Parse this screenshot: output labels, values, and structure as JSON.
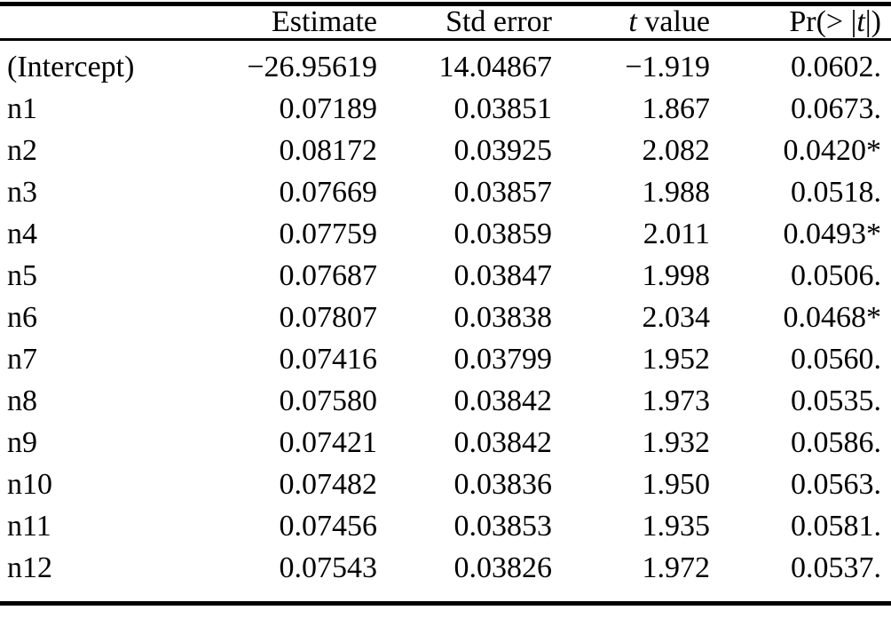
{
  "table": {
    "header": {
      "row_label": "",
      "estimate": "Estimate",
      "std_error": "Std error",
      "t_italic": "t",
      "t_rest": " value",
      "pr_prefix": "Pr(> |",
      "pr_t": "t",
      "pr_suffix": "|)"
    },
    "rows": [
      {
        "label": "(Intercept)",
        "estimate": "−26.95619",
        "std_error": "14.04867",
        "t_value": "−1.919",
        "p_value": "0.0602."
      },
      {
        "label": "n1",
        "estimate": "0.07189",
        "std_error": "0.03851",
        "t_value": "1.867",
        "p_value": "0.0673."
      },
      {
        "label": "n2",
        "estimate": "0.08172",
        "std_error": "0.03925",
        "t_value": "2.082",
        "p_value": "0.0420*"
      },
      {
        "label": "n3",
        "estimate": "0.07669",
        "std_error": "0.03857",
        "t_value": "1.988",
        "p_value": "0.0518."
      },
      {
        "label": "n4",
        "estimate": "0.07759",
        "std_error": "0.03859",
        "t_value": "2.011",
        "p_value": "0.0493*"
      },
      {
        "label": "n5",
        "estimate": "0.07687",
        "std_error": "0.03847",
        "t_value": "1.998",
        "p_value": "0.0506."
      },
      {
        "label": "n6",
        "estimate": "0.07807",
        "std_error": "0.03838",
        "t_value": "2.034",
        "p_value": "0.0468*"
      },
      {
        "label": "n7",
        "estimate": "0.07416",
        "std_error": "0.03799",
        "t_value": "1.952",
        "p_value": "0.0560."
      },
      {
        "label": "n8",
        "estimate": "0.07580",
        "std_error": "0.03842",
        "t_value": "1.973",
        "p_value": "0.0535."
      },
      {
        "label": "n9",
        "estimate": "0.07421",
        "std_error": "0.03842",
        "t_value": "1.932",
        "p_value": "0.0586."
      },
      {
        "label": "n10",
        "estimate": "0.07482",
        "std_error": "0.03836",
        "t_value": "1.950",
        "p_value": "0.0563."
      },
      {
        "label": "n11",
        "estimate": "0.07456",
        "std_error": "0.03853",
        "t_value": "1.935",
        "p_value": "0.0581."
      },
      {
        "label": "n12",
        "estimate": "0.07543",
        "std_error": "0.03826",
        "t_value": "1.972",
        "p_value": "0.0537."
      }
    ]
  },
  "colors": {
    "text": "#000000",
    "background": "#ffffff",
    "rule": "#000000"
  }
}
